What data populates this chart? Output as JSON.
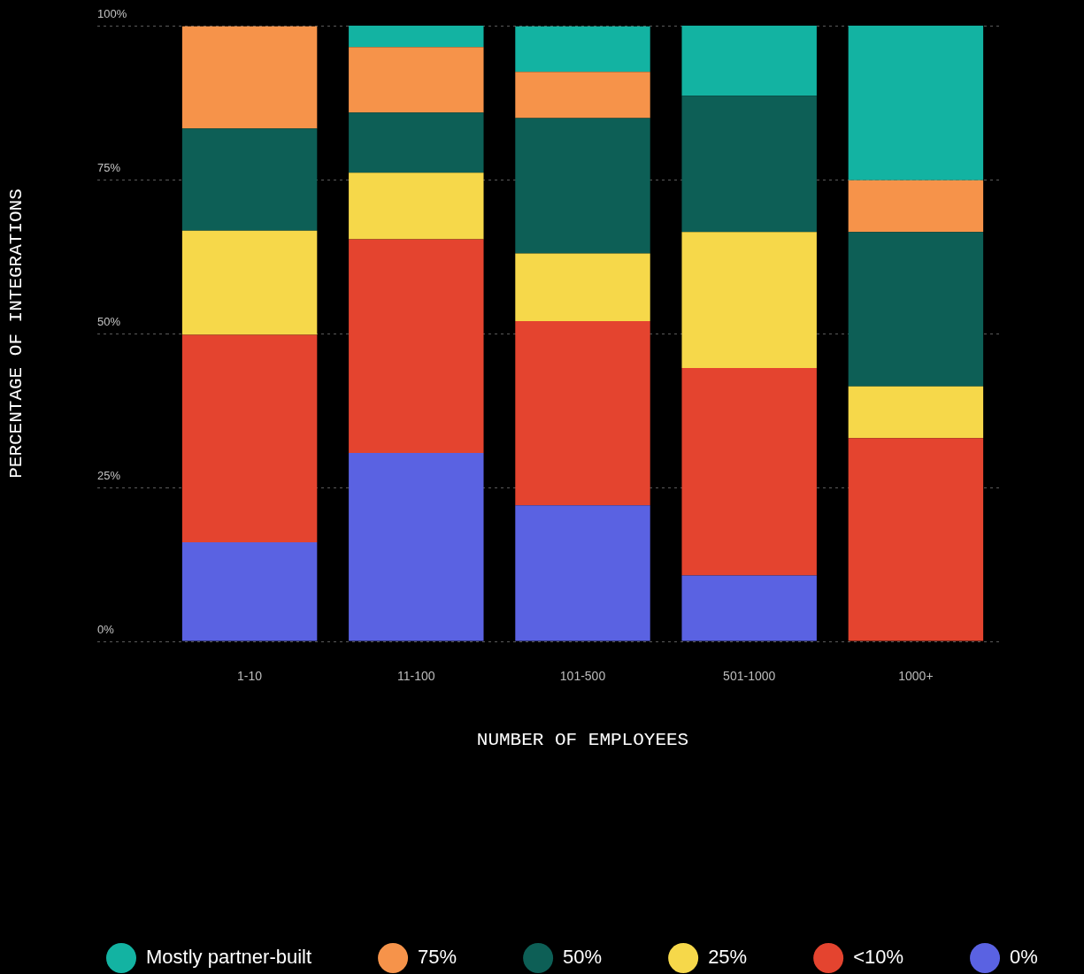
{
  "chart_data": {
    "type": "bar",
    "stacked": true,
    "xlabel": "NUMBER OF EMPLOYEES",
    "ylabel": "PERCENTAGE OF INTEGRATIONS",
    "categories": [
      "1-10",
      "11-100",
      "101-500",
      "501-1000",
      "1000+"
    ],
    "series": [
      {
        "name": "0%",
        "color": "#5a62e2",
        "values": [
          16.1,
          30.6,
          22.1,
          10.7,
          0
        ]
      },
      {
        "name": "<10%",
        "color": "#e4442f",
        "values": [
          33.7,
          34.7,
          29.9,
          33.7,
          33.0
        ]
      },
      {
        "name": "25%",
        "color": "#f6d84a",
        "values": [
          16.9,
          10.8,
          11.0,
          22.1,
          8.4
        ]
      },
      {
        "name": "50%",
        "color": "#0d5f56",
        "values": [
          16.6,
          9.8,
          22.0,
          22.1,
          25.1
        ]
      },
      {
        "name": "75%",
        "color": "#f6934a",
        "values": [
          16.6,
          10.6,
          7.5,
          0,
          8.4
        ]
      },
      {
        "name": "Mostly partner-built",
        "color": "#13b3a2",
        "values": [
          0,
          3.5,
          7.4,
          11.4,
          25.1
        ]
      }
    ],
    "ylim": [
      0,
      100
    ],
    "yticks": [
      {
        "value": 0,
        "label": "0%"
      },
      {
        "value": 25,
        "label": "25%"
      },
      {
        "value": 50,
        "label": "50%"
      },
      {
        "value": 75,
        "label": "75%"
      },
      {
        "value": 100,
        "label": "100%"
      }
    ],
    "grid": "y",
    "legend": "bottom"
  }
}
